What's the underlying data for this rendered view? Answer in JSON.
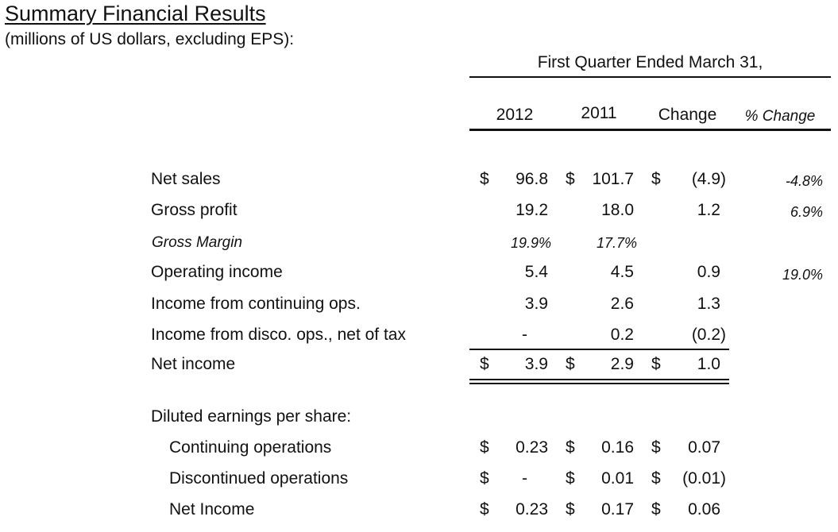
{
  "title": "Summary Financial Results",
  "subtitle": "(millions of US dollars, excluding EPS):",
  "period_header": "First Quarter Ended March 31,",
  "columns": {
    "y2012": "2012",
    "y2011": "2011",
    "change": "Change",
    "pct_change": "% Change"
  },
  "currency_symbol": "$",
  "rows": {
    "net_sales": {
      "label": "Net sales",
      "v2012": "96.8",
      "v2011": "101.7",
      "change": "(4.9)",
      "pct": "-4.8%"
    },
    "gross_profit": {
      "label": "Gross profit",
      "v2012": "19.2",
      "v2011": "18.0",
      "change": "1.2",
      "pct": "6.9%"
    },
    "gross_margin": {
      "label": "Gross Margin",
      "v2012": "19.9%",
      "v2011": "17.7%"
    },
    "operating_income": {
      "label": "Operating income",
      "v2012": "5.4",
      "v2011": "4.5",
      "change": "0.9",
      "pct": "19.0%"
    },
    "income_cont": {
      "label": "Income from continuing ops.",
      "v2012": "3.9",
      "v2011": "2.6",
      "change": "1.3"
    },
    "income_disc": {
      "label": "Income from disco. ops., net of tax",
      "v2012": "-",
      "v2011": "0.2",
      "change": "(0.2)"
    },
    "net_income": {
      "label": "Net income",
      "v2012": "3.9",
      "v2011": "2.9",
      "change": "1.0"
    }
  },
  "eps": {
    "heading": "Diluted earnings per share:",
    "continuing": {
      "label": "Continuing operations",
      "v2012": "0.23",
      "v2011": "0.16",
      "change": "0.07"
    },
    "discontinued": {
      "label": "Discontinued operations",
      "v2012": "-",
      "v2011": "0.01",
      "change": "(0.01)"
    },
    "net_income": {
      "label": "Net Income",
      "v2012": "0.23",
      "v2011": "0.17",
      "change": "0.06"
    }
  }
}
